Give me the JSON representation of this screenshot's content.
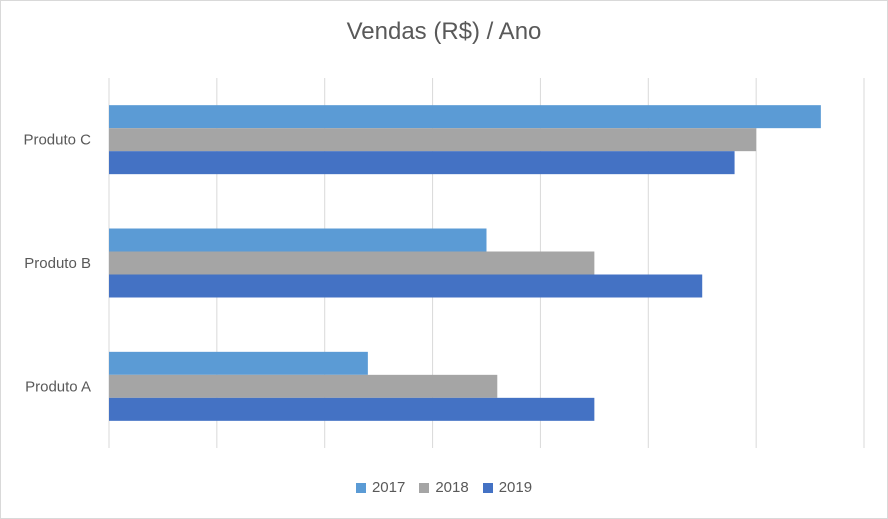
{
  "chart_data": {
    "type": "bar",
    "orientation": "horizontal",
    "title": "Vendas (R$) / Ano",
    "categories": [
      "Produto A",
      "Produto B",
      "Produto C"
    ],
    "series": [
      {
        "name": "2017",
        "color": "#5b9bd5",
        "values": [
          240,
          350,
          660
        ]
      },
      {
        "name": "2018",
        "color": "#a5a5a5",
        "values": [
          360,
          450,
          600
        ]
      },
      {
        "name": "2019",
        "color": "#4472c4",
        "values": [
          450,
          550,
          580
        ]
      }
    ],
    "xlim": [
      0,
      700
    ],
    "grid": true,
    "legend_position": "bottom"
  }
}
